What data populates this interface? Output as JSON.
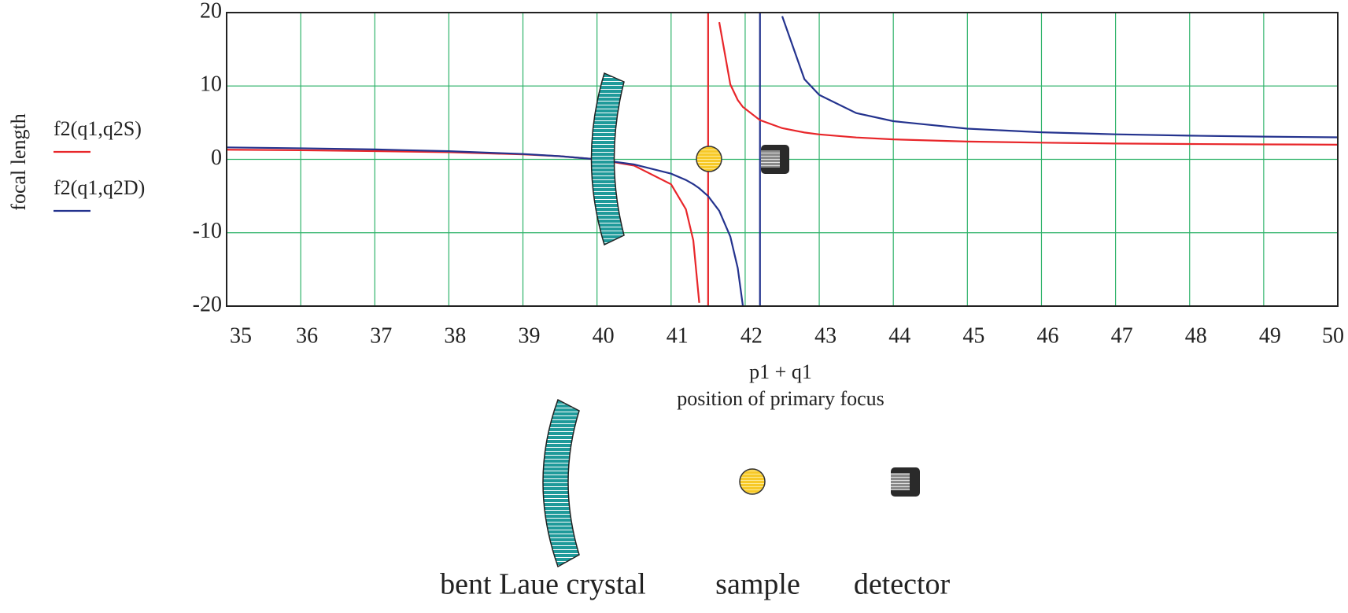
{
  "chart_data": {
    "type": "line",
    "x_label": [
      "p1 + q1",
      "position of primary focus"
    ],
    "y_label": "focal length",
    "x": [
      35,
      36,
      37,
      38,
      39,
      39.5,
      40,
      40.5,
      41,
      41.2,
      41.3,
      41.38,
      41.5,
      41.65,
      41.8,
      41.9,
      41.97,
      42.2,
      42.5,
      42.8,
      43,
      43.5,
      44,
      45,
      46,
      47,
      48,
      49,
      50
    ],
    "series": [
      {
        "name": "f2(q1,q2S)",
        "color": "#e8262a",
        "values": [
          1.31,
          1.24,
          1.13,
          0.97,
          0.68,
          0.43,
          0,
          -0.85,
          -3.4,
          -6.8,
          -11.05,
          -19.55,
          null,
          18.7,
          10.2,
          8.08,
          7.13,
          5.34,
          4.25,
          3.66,
          3.4,
          2.98,
          2.72,
          2.43,
          2.27,
          2.16,
          2.09,
          2.04,
          2.0
        ]
      },
      {
        "name": "f2(q1,q2D)",
        "color": "#24338e",
        "values": [
          1.63,
          1.51,
          1.35,
          1.11,
          0.73,
          0.43,
          0,
          -0.69,
          -1.95,
          -2.81,
          -3.38,
          -3.94,
          -5.01,
          -7.02,
          -10.53,
          -14.82,
          -20.04,
          null,
          19.5,
          10.92,
          8.78,
          6.3,
          5.2,
          4.18,
          3.69,
          3.41,
          3.23,
          3.1,
          3.0
        ]
      }
    ],
    "vlines": [
      {
        "value": 41.5,
        "color": "#e8262a"
      },
      {
        "value": 42.2,
        "color": "#24338e"
      }
    ],
    "xlim": [
      35,
      50
    ],
    "xticks": [
      35,
      36,
      37,
      38,
      39,
      40,
      41,
      42,
      43,
      44,
      45,
      46,
      47,
      48,
      49,
      50
    ],
    "ylim": [
      -20,
      20
    ],
    "yticks": [
      -20,
      -10,
      0,
      10,
      20
    ],
    "grid": true,
    "grid_color": "#2fb36a",
    "annotations": [
      "bent Laue crystal",
      "sample",
      "detector"
    ]
  }
}
